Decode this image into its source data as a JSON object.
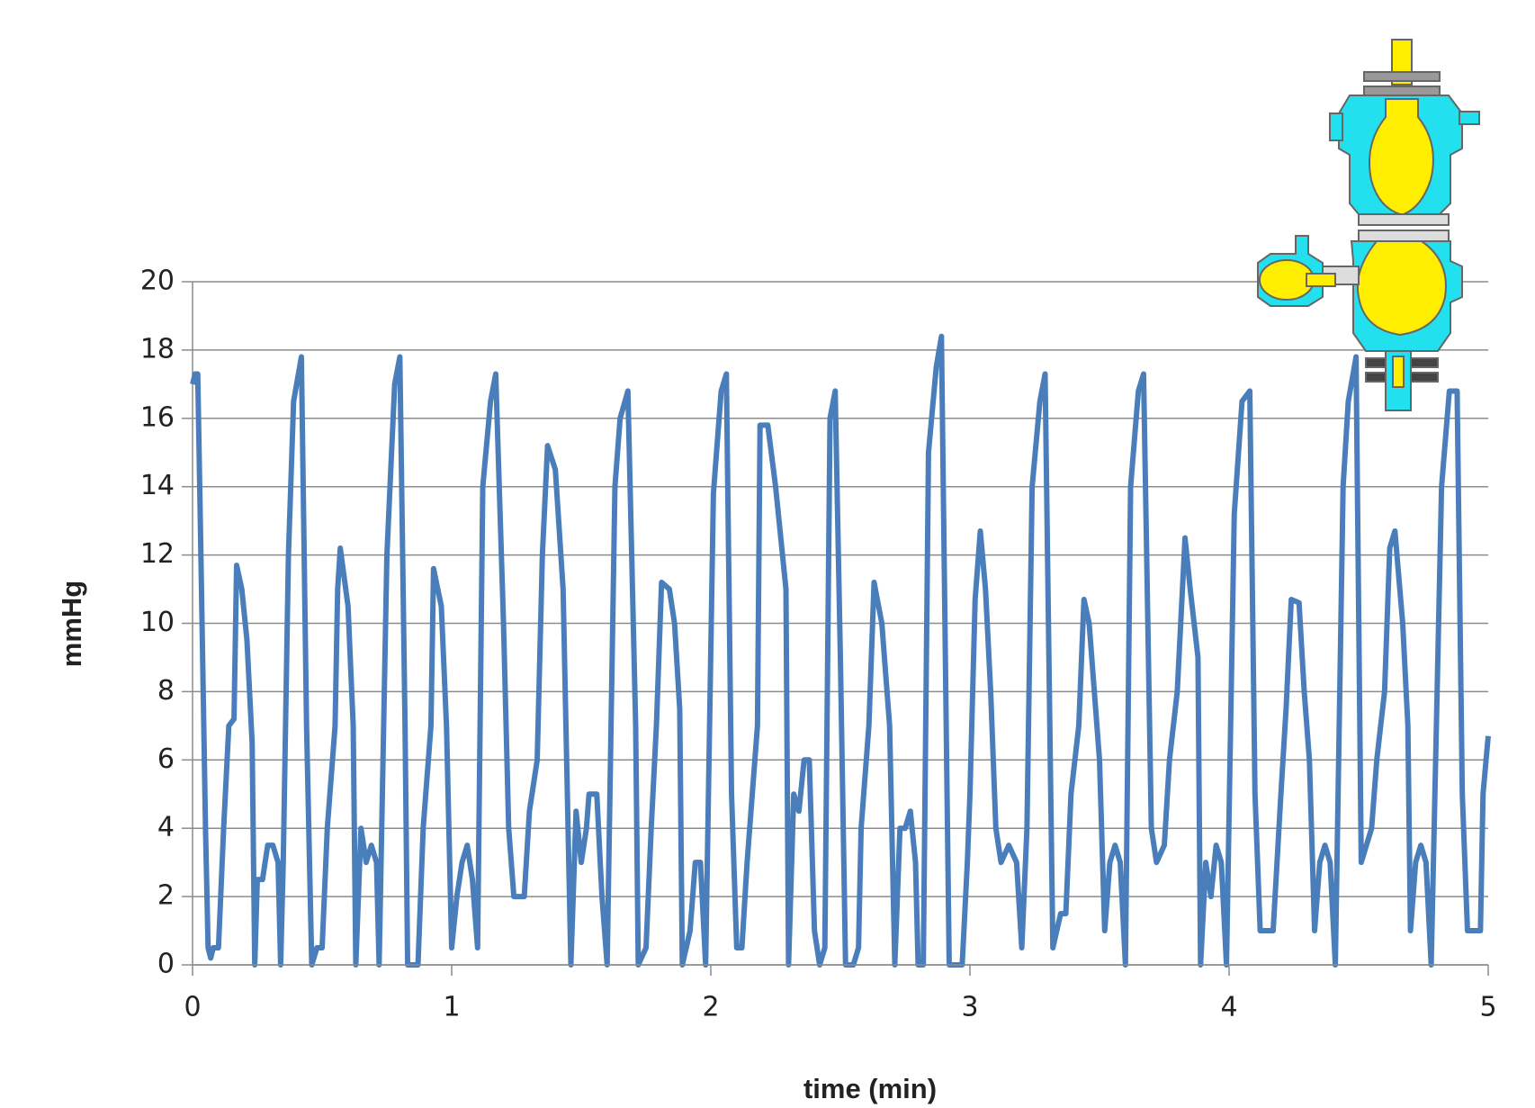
{
  "chart_data": {
    "type": "line",
    "x_label": "time (min)",
    "y_label": "mmHg",
    "xlim": [
      0,
      5
    ],
    "xticks": [
      0,
      1,
      2,
      3,
      4,
      5
    ],
    "ylim": [
      0,
      20
    ],
    "yticks": [
      0,
      2,
      4,
      6,
      8,
      10,
      12,
      14,
      16,
      18,
      20
    ],
    "grid": true,
    "series": [
      {
        "color": "#4a7ebb",
        "x": [
          0,
          0.01,
          0.02,
          0.03,
          0.05,
          0.06,
          0.07,
          0.08,
          0.1,
          0.12,
          0.14,
          0.16,
          0.17,
          0.19,
          0.21,
          0.23,
          0.24,
          0.25,
          0.27,
          0.29,
          0.31,
          0.33,
          0.34,
          0.35,
          0.37,
          0.39,
          0.42,
          0.44,
          0.46,
          0.48,
          0.5,
          0.52,
          0.55,
          0.56,
          0.57,
          0.6,
          0.62,
          0.63,
          0.65,
          0.67,
          0.69,
          0.71,
          0.72,
          0.75,
          0.78,
          0.8,
          0.82,
          0.83,
          0.87,
          0.89,
          0.92,
          0.93,
          0.96,
          0.98,
          1.0,
          1.02,
          1.04,
          1.06,
          1.08,
          1.1,
          1.12,
          1.15,
          1.17,
          1.2,
          1.22,
          1.24,
          1.28,
          1.3,
          1.33,
          1.35,
          1.37,
          1.4,
          1.43,
          1.46,
          1.48,
          1.5,
          1.52,
          1.53,
          1.56,
          1.58,
          1.6,
          1.63,
          1.65,
          1.68,
          1.71,
          1.72,
          1.75,
          1.77,
          1.79,
          1.81,
          1.84,
          1.86,
          1.88,
          1.89,
          1.92,
          1.94,
          1.96,
          1.98,
          2.01,
          2.04,
          2.06,
          2.08,
          2.1,
          2.12,
          2.14,
          2.16,
          2.18,
          2.19,
          2.22,
          2.25,
          2.29,
          2.3,
          2.32,
          2.34,
          2.36,
          2.38,
          2.4,
          2.42,
          2.44,
          2.46,
          2.48,
          2.5,
          2.52,
          2.55,
          2.57,
          2.58,
          2.61,
          2.63,
          2.66,
          2.69,
          2.71,
          2.73,
          2.75,
          2.77,
          2.79,
          2.8,
          2.82,
          2.84,
          2.87,
          2.89,
          2.91,
          2.92,
          2.97,
          2.99,
          3.0,
          3.02,
          3.04,
          3.06,
          3.08,
          3.1,
          3.12,
          3.15,
          3.18,
          3.2,
          3.22,
          3.24,
          3.27,
          3.29,
          3.31,
          3.32,
          3.35,
          3.37,
          3.39,
          3.42,
          3.44,
          3.46,
          3.48,
          3.5,
          3.52,
          3.54,
          3.56,
          3.58,
          3.6,
          3.62,
          3.65,
          3.67,
          3.7,
          3.72,
          3.75,
          3.77,
          3.8,
          3.83,
          3.85,
          3.88,
          3.89,
          3.91,
          3.93,
          3.95,
          3.97,
          3.99,
          4.02,
          4.05,
          4.08,
          4.1,
          4.12,
          4.17,
          4.2,
          4.22,
          4.24,
          4.27,
          4.29,
          4.31,
          4.33,
          4.35,
          4.37,
          4.39,
          4.41,
          4.44,
          4.46,
          4.49,
          4.51,
          4.53,
          4.55,
          4.57,
          4.6,
          4.62,
          4.64,
          4.67,
          4.69,
          4.7,
          4.72,
          4.74,
          4.76,
          4.78,
          4.82,
          4.85,
          4.88,
          4.9,
          4.92,
          4.97,
          4.98,
          5.0
        ],
        "values": [
          17,
          17.3,
          17.3,
          13,
          4,
          0.5,
          0.2,
          0.5,
          0.5,
          4,
          7,
          7.2,
          11.7,
          11,
          9.5,
          6.5,
          0,
          2.5,
          2.5,
          3.5,
          3.5,
          3,
          0,
          3,
          12,
          16.5,
          17.8,
          7,
          0,
          0.5,
          0.5,
          4,
          7,
          11,
          12.2,
          10.5,
          7,
          0,
          4,
          3,
          3.5,
          3,
          0,
          12,
          17,
          17.8,
          7,
          0,
          0,
          4,
          7,
          11.6,
          10.5,
          7,
          0.5,
          2,
          3,
          3.5,
          2.5,
          0.5,
          14,
          16.5,
          17.3,
          10,
          4,
          2,
          2,
          4.5,
          6,
          12,
          15.2,
          14.5,
          11,
          0,
          4.5,
          3,
          4,
          5,
          5,
          2,
          0,
          14,
          16,
          16.8,
          7,
          0,
          0.5,
          4,
          7,
          11.2,
          11,
          10,
          7.5,
          0,
          1,
          3,
          3,
          0,
          13.8,
          16.8,
          17.3,
          5,
          0.5,
          0.5,
          3,
          5,
          7,
          15.8,
          15.8,
          14,
          11,
          0,
          5,
          4.5,
          6,
          6,
          1,
          0,
          0.5,
          16,
          16.8,
          9,
          0,
          0,
          0.5,
          4,
          7,
          11.2,
          10,
          7,
          0,
          4,
          4,
          4.5,
          3,
          0,
          0,
          15,
          17.5,
          18.4,
          6,
          0,
          0,
          3,
          5,
          10.7,
          12.7,
          11,
          8,
          4,
          3,
          3.5,
          3,
          0.5,
          4,
          14,
          16.5,
          17.3,
          6,
          0.5,
          1.5,
          1.5,
          5,
          7,
          10.7,
          10,
          8,
          6,
          1,
          3,
          3.5,
          3,
          0,
          14,
          16.8,
          17.3,
          4,
          3,
          3.5,
          6,
          8,
          12.5,
          11,
          9,
          0,
          3,
          2,
          3.5,
          3,
          0,
          13.2,
          16.5,
          16.8,
          5,
          1,
          1,
          5,
          7.5,
          10.7,
          10.6,
          8,
          6,
          1,
          3,
          3.5,
          3,
          0,
          14,
          16.5,
          17.8,
          3,
          3.5,
          4,
          6,
          8,
          12.2,
          12.7,
          10,
          7,
          1,
          3,
          3.5,
          3,
          0,
          14,
          16.8,
          16.8,
          5,
          1,
          1,
          5,
          6.7
        ]
      }
    ]
  }
}
